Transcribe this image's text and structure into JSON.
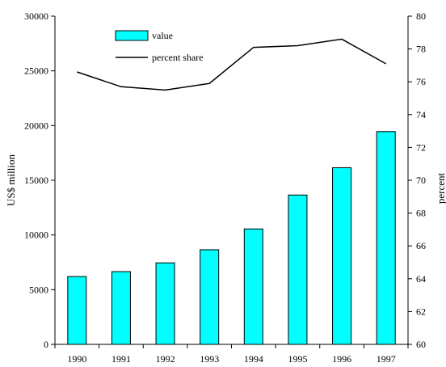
{
  "chart_data": {
    "type": "bar",
    "categories": [
      "1990",
      "1991",
      "1992",
      "1993",
      "1994",
      "1995",
      "1996",
      "1997"
    ],
    "series": [
      {
        "name": "value",
        "type": "bar",
        "axis": "left",
        "color": "#00ffff",
        "values": [
          6200,
          6650,
          7450,
          8650,
          10550,
          13650,
          16150,
          19450
        ]
      },
      {
        "name": "percent share",
        "type": "line",
        "axis": "right",
        "color": "#000000",
        "values": [
          76.6,
          75.7,
          75.5,
          75.9,
          78.1,
          78.2,
          78.6,
          77.1
        ]
      }
    ],
    "ylabel": "US$ million",
    "y2label": "percent",
    "ylim": [
      0,
      30000
    ],
    "y2lim": [
      60,
      80
    ],
    "yticks": [
      "0",
      "5000",
      "10000",
      "15000",
      "20000",
      "25000",
      "30000"
    ],
    "y2ticks": [
      "60",
      "62",
      "64",
      "66",
      "68",
      "70",
      "72",
      "74",
      "76",
      "78",
      "80"
    ],
    "grid": false,
    "legend_position": "top-left"
  }
}
